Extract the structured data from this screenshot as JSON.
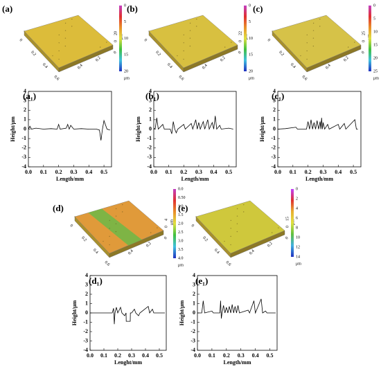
{
  "surfaces": [
    {
      "label": "(a)",
      "colorbar_ticks": [
        "0",
        "5",
        "10",
        "15",
        "20"
      ],
      "unit": "μm",
      "colorbar_colors": [
        "#c23fc2",
        "#e03030",
        "#e8902a",
        "#e0e040",
        "#40c040",
        "#40c0e0",
        "#2030c0"
      ],
      "face_color": "#dcbc3a",
      "x_ticks": [
        "0",
        "0.2",
        "0.4",
        "0.6"
      ],
      "y_ticks": [
        "0.4",
        "0.2",
        "0"
      ],
      "z_ticks": [
        "0",
        "20"
      ],
      "z_unit": "μm"
    },
    {
      "label": "(b)",
      "colorbar_ticks": [
        "0",
        "5",
        "10",
        "15",
        "20"
      ],
      "unit": "μm",
      "colorbar_colors": [
        "#c23fc2",
        "#e03030",
        "#e8902a",
        "#e0e040",
        "#40c040",
        "#40c0e0",
        "#2030c0"
      ],
      "face_color": "#d8c040",
      "x_ticks": [
        "0",
        "0.2",
        "0.4",
        "0.6"
      ],
      "y_ticks": [
        "0.4",
        "0.2",
        "0"
      ],
      "z_ticks": [
        "0",
        "22"
      ],
      "z_unit": "μm"
    },
    {
      "label": "(c)",
      "colorbar_ticks": [
        "0",
        "5",
        "10",
        "15",
        "20",
        "25"
      ],
      "unit": "μm",
      "colorbar_colors": [
        "#c23fc2",
        "#e03030",
        "#e8902a",
        "#e0e040",
        "#40c040",
        "#40c0e0",
        "#2030c0"
      ],
      "face_color": "#d6c248",
      "x_ticks": [
        "0",
        "0.2",
        "0.4",
        "0.6"
      ],
      "y_ticks": [
        "0.4",
        "0.2",
        "0"
      ],
      "z_ticks": [
        "0",
        "25"
      ],
      "z_unit": "μm"
    },
    {
      "label": "(d)",
      "colorbar_ticks": [
        "0.0",
        "0.50",
        "1.0",
        "1.5",
        "2.0",
        "2.5",
        "3.0",
        "3.5",
        "4.0"
      ],
      "unit": "μm",
      "colorbar_colors": [
        "#c23fc2",
        "#e03030",
        "#e8902a",
        "#e0e040",
        "#40c040",
        "#40c0e0",
        "#2030c0"
      ],
      "face_color": "#e09a3a",
      "stripe_color": "#6cb848",
      "x_ticks": [
        "0",
        "0.2",
        "0.4",
        "0.6"
      ],
      "y_ticks": [
        "0.4",
        "0.2",
        "0"
      ],
      "z_ticks": [
        "0",
        "4"
      ],
      "z_unit": "μm"
    },
    {
      "label": "(e)",
      "colorbar_ticks": [
        "0",
        "2",
        "4",
        "6",
        "8",
        "10",
        "12",
        "14"
      ],
      "unit": "μm",
      "colorbar_colors": [
        "#c040ff",
        "#e03030",
        "#e8b030",
        "#e0e040",
        "#60c040",
        "#40b0e0",
        "#2030c0"
      ],
      "face_color": "#cfc83c",
      "x_ticks": [
        "0",
        "0.2",
        "0.4",
        "0.6"
      ],
      "y_ticks": [
        "0.4",
        "0.2",
        "0"
      ],
      "z_ticks": [
        "0",
        "15"
      ],
      "z_unit": "μm"
    }
  ],
  "chart_data": [
    {
      "type": "line",
      "title": "(a₁)",
      "xlabel": "Length/mm",
      "ylabel": "Height/μm",
      "color": "#000000",
      "x": [
        0,
        0.01,
        0.02,
        0.05,
        0.1,
        0.15,
        0.19,
        0.2,
        0.21,
        0.25,
        0.26,
        0.27,
        0.28,
        0.3,
        0.35,
        0.4,
        0.45,
        0.47,
        0.48,
        0.49,
        0.5,
        0.52,
        0.54
      ],
      "values": [
        0,
        0.3,
        0,
        0.1,
        0,
        0.05,
        0,
        0.5,
        0,
        0.1,
        0.5,
        0,
        0.4,
        0,
        0.05,
        0,
        0,
        -0.1,
        -1.2,
        0,
        0.9,
        0,
        -0.1
      ],
      "xlim": [
        0,
        0.55
      ],
      "ylim": [
        -4,
        4
      ],
      "xticks": [
        {
          "value": 0,
          "label": "0.0"
        },
        0.1,
        0.2,
        0.3,
        0.4,
        0.5
      ],
      "yticks": [
        4,
        3,
        2,
        1,
        0,
        -1,
        -2,
        -3,
        -4
      ]
    },
    {
      "type": "line",
      "title": "(b₁)",
      "xlabel": "Length/mm",
      "ylabel": "Height/μm",
      "color": "#000000",
      "x": [
        0,
        0.01,
        0.02,
        0.03,
        0.06,
        0.07,
        0.11,
        0.12,
        0.13,
        0.14,
        0.15,
        0.16,
        0.2,
        0.21,
        0.25,
        0.26,
        0.28,
        0.29,
        0.3,
        0.31,
        0.33,
        0.34,
        0.36,
        0.37,
        0.39,
        0.4,
        0.41,
        0.42,
        0.44,
        0.45,
        0.5,
        0.53
      ],
      "values": [
        0,
        0.1,
        1.2,
        0,
        0.5,
        0,
        0,
        -0.5,
        0.8,
        0,
        -0.4,
        0,
        0.5,
        0,
        0.6,
        0,
        1.0,
        0,
        0.7,
        0,
        0.8,
        0,
        1.0,
        0,
        0.7,
        0,
        1.4,
        0,
        0.4,
        0,
        0.1,
        0
      ],
      "xlim": [
        0,
        0.55
      ],
      "ylim": [
        -4,
        4
      ],
      "xticks": [
        {
          "value": 0,
          "label": "0.0"
        },
        0.1,
        0.2,
        0.3,
        0.4,
        0.5
      ],
      "yticks": [
        4,
        3,
        2,
        1,
        0,
        -1,
        -2,
        -3,
        -4
      ]
    },
    {
      "type": "line",
      "title": "(c₁)",
      "xlabel": "Length/mm",
      "ylabel": "Height/μm",
      "color": "#000000",
      "x": [
        0,
        0.05,
        0.12,
        0.13,
        0.19,
        0.2,
        0.21,
        0.22,
        0.23,
        0.24,
        0.25,
        0.26,
        0.27,
        0.28,
        0.285,
        0.29,
        0.295,
        0.3,
        0.31,
        0.33,
        0.34,
        0.4,
        0.41,
        0.44,
        0.45,
        0.51,
        0.52,
        0.53
      ],
      "values": [
        0,
        0.05,
        0.2,
        0,
        0,
        0.8,
        0,
        1.0,
        0,
        0.7,
        0,
        0.9,
        0,
        0.8,
        0,
        1.2,
        0,
        0.7,
        0,
        0.5,
        0,
        0.5,
        0,
        0.6,
        0,
        1.0,
        0,
        0
      ],
      "xlim": [
        0,
        0.55
      ],
      "ylim": [
        -4,
        4
      ],
      "xticks": [
        {
          "value": 0,
          "label": "0.0"
        },
        0.1,
        0.2,
        0.3,
        0.4,
        0.5
      ],
      "yticks": [
        4,
        3,
        2,
        1,
        0,
        -1,
        -2,
        -3,
        -4
      ]
    },
    {
      "type": "line",
      "title": "(d₁)",
      "xlabel": "Lenght/mm",
      "ylabel": "Height/μm",
      "color": "#000000",
      "x": [
        0,
        0.1,
        0.16,
        0.17,
        0.175,
        0.18,
        0.19,
        0.2,
        0.22,
        0.23,
        0.25,
        0.26,
        0.261,
        0.29,
        0.291,
        0.3,
        0.32,
        0.33,
        0.35,
        0.36,
        0.42,
        0.43,
        0.45,
        0.46,
        0.54
      ],
      "values": [
        0,
        0,
        0,
        0.5,
        -1.2,
        0,
        0.6,
        0,
        0.6,
        0,
        -0.3,
        0,
        -0.9,
        -0.9,
        0,
        0,
        0.4,
        0,
        -0.3,
        0,
        0.7,
        0,
        0.4,
        0,
        0
      ],
      "xlim": [
        0,
        0.55
      ],
      "ylim": [
        -4,
        4
      ],
      "xticks": [
        {
          "value": 0,
          "label": "0.0"
        },
        0.1,
        0.2,
        0.3,
        0.4,
        0.5
      ],
      "yticks": [
        4,
        3,
        2,
        1,
        0,
        -1,
        -2,
        -3,
        -4
      ]
    },
    {
      "type": "line",
      "title": "(e₁)",
      "xlabel": "Length/mm",
      "ylabel": "Height/μm",
      "color": "#000000",
      "x": [
        0,
        0.03,
        0.04,
        0.05,
        0.1,
        0.11,
        0.155,
        0.16,
        0.165,
        0.17,
        0.18,
        0.19,
        0.2,
        0.21,
        0.22,
        0.23,
        0.24,
        0.25,
        0.26,
        0.27,
        0.28,
        0.29,
        0.35,
        0.36,
        0.39,
        0.4,
        0.44,
        0.45,
        0.47,
        0.48,
        0.54
      ],
      "values": [
        0,
        0,
        1.3,
        0,
        0.2,
        0,
        0,
        1.3,
        -0.6,
        0,
        0.8,
        0,
        0.6,
        0,
        0.7,
        0,
        0.9,
        0,
        0.7,
        0,
        0.8,
        0,
        0.3,
        0,
        1.3,
        0,
        1.5,
        0,
        0.2,
        0,
        0
      ],
      "xlim": [
        0,
        0.55
      ],
      "ylim": [
        -4,
        4
      ],
      "xticks": [
        {
          "value": 0,
          "label": "0.0"
        },
        0.1,
        0.2,
        0.3,
        0.4,
        0.5
      ],
      "yticks": [
        4,
        3,
        2,
        1,
        0,
        -1,
        -2,
        -3,
        -4
      ]
    }
  ]
}
